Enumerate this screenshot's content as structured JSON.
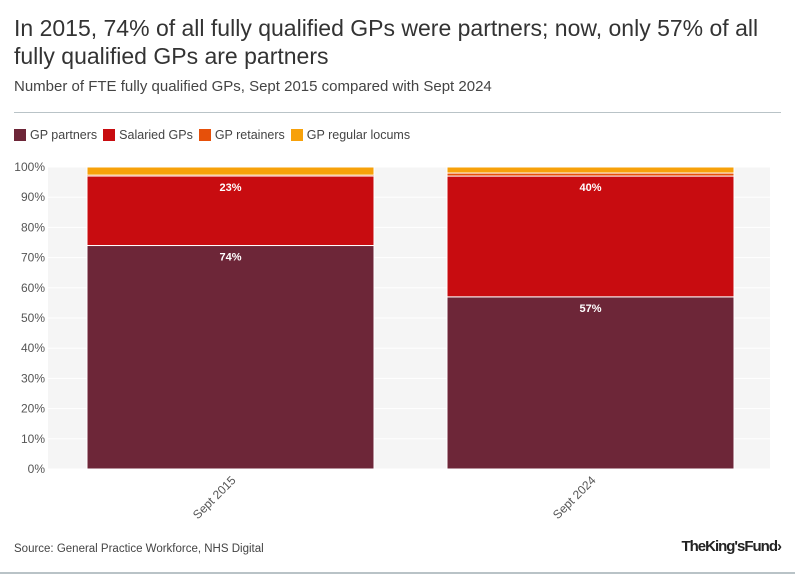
{
  "title": "In 2015, 74% of all fully qualified GPs were partners; now, only 57% of all fully qualified GPs are partners",
  "subtitle": "Number of FTE fully qualified GPs, Sept 2015 compared with Sept 2024",
  "source": "Source: General Practice Workforce, NHS Digital",
  "logo": "The King's Fund",
  "chart_data": {
    "type": "bar",
    "stacked": true,
    "grid": true,
    "legend": "top-left",
    "categories": [
      "Sept 2015",
      "Sept 2024"
    ],
    "ylim": [
      0,
      100
    ],
    "yticks": [
      "0%",
      "10%",
      "20%",
      "30%",
      "40%",
      "50%",
      "60%",
      "70%",
      "80%",
      "90%",
      "100%"
    ],
    "series": [
      {
        "name": "GP partners",
        "color": "#6d2638",
        "values": [
          74,
          57
        ],
        "labels": [
          "74%",
          "57%"
        ]
      },
      {
        "name": "Salaried GPs",
        "color": "#c80c10",
        "values": [
          23,
          40
        ],
        "labels": [
          "23%",
          "40%"
        ]
      },
      {
        "name": "GP retainers",
        "color": "#e6500a",
        "values": [
          0.3,
          1
        ],
        "labels": [
          "",
          ""
        ]
      },
      {
        "name": "GP regular locums",
        "color": "#f7a10a",
        "values": [
          2.7,
          2
        ],
        "labels": [
          "",
          ""
        ]
      }
    ]
  }
}
